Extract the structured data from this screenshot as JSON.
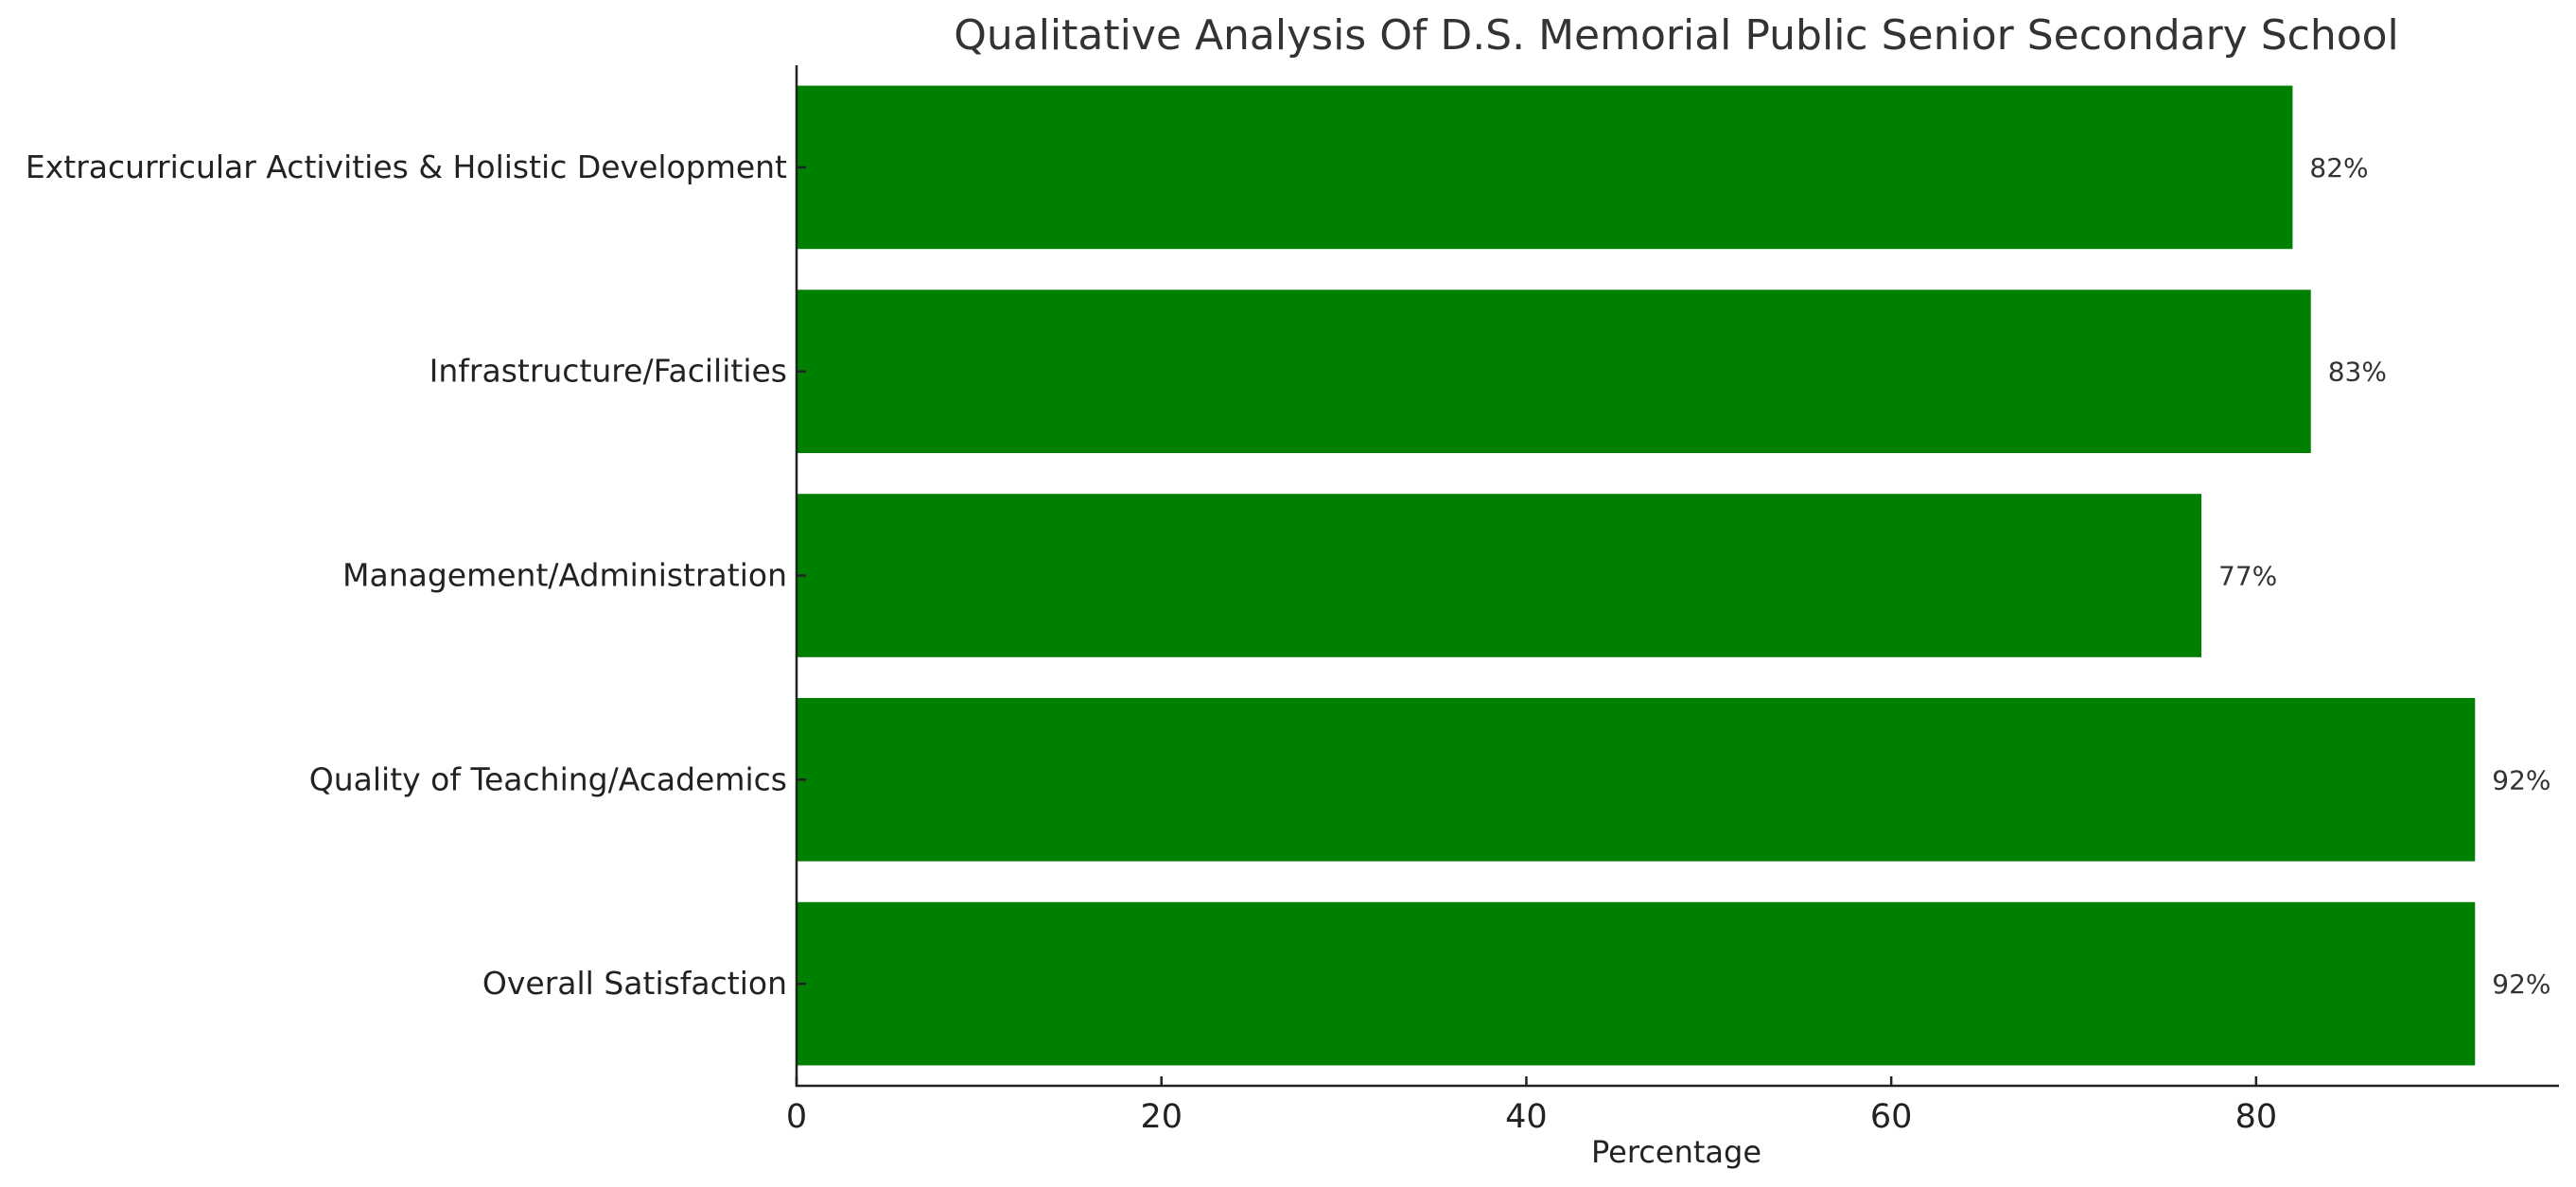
{
  "chart_data": {
    "type": "bar",
    "orientation": "horizontal",
    "title": "Qualitative Analysis Of D.S. Memorial Public Senior Secondary School",
    "xlabel": "Percentage",
    "ylabel": "",
    "categories": [
      "Overall Satisfaction",
      "Quality of Teaching/Academics",
      "Management/Administration",
      "Infrastructure/Facilities",
      "Extracurricular Activities & Holistic Development"
    ],
    "values": [
      92,
      92,
      77,
      83,
      82
    ],
    "data_labels": [
      "92%",
      "92%",
      "77%",
      "83%",
      "82%"
    ],
    "xlim": [
      0,
      96.6
    ],
    "xticks": [
      0,
      20,
      40,
      60,
      80
    ],
    "xtick_labels": [
      "0",
      "20",
      "40",
      "60",
      "80"
    ],
    "grid": false,
    "legend": "none",
    "bar_color": "#008000"
  }
}
